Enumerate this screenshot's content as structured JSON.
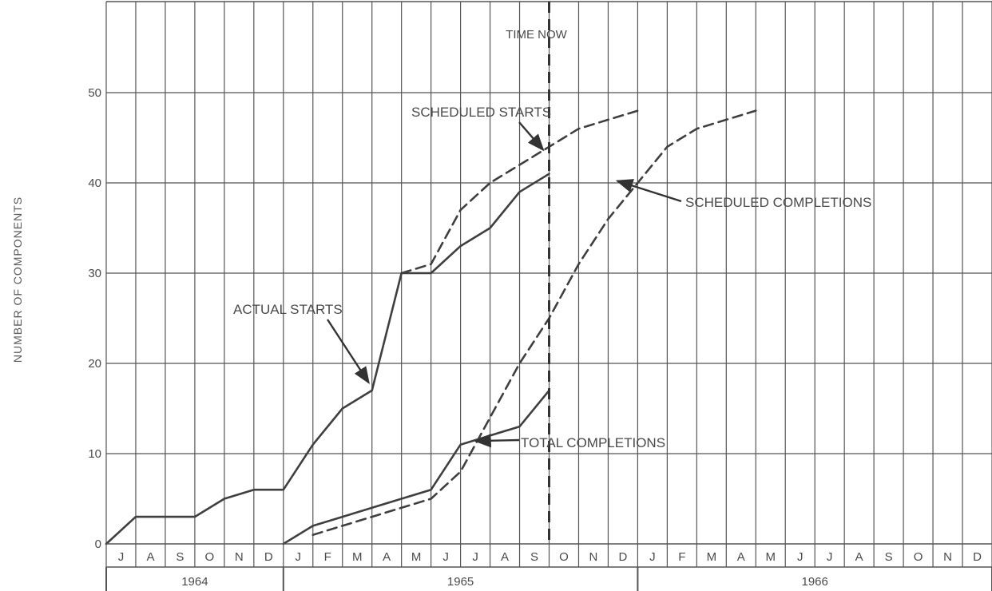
{
  "chart_data": {
    "type": "line",
    "title": "",
    "ylabel": "NUMBER OF COMPONENTS",
    "xlabel": "",
    "ylim": [
      0,
      55
    ],
    "yticks": [
      0,
      10,
      20,
      30,
      40,
      50
    ],
    "grid": true,
    "x_unit": "month (1964-06 = 0, 1966-12 = 30)",
    "month_labels": [
      "J",
      "A",
      "S",
      "O",
      "N",
      "D",
      "J",
      "F",
      "M",
      "A",
      "M",
      "J",
      "J",
      "A",
      "S",
      "O",
      "N",
      "D",
      "J",
      "F",
      "M",
      "A",
      "M",
      "J",
      "J",
      "A",
      "S",
      "O",
      "N",
      "D"
    ],
    "year_labels": [
      {
        "label": "1964",
        "start": 0,
        "end": 6
      },
      {
        "label": "1965",
        "start": 6,
        "end": 18
      },
      {
        "label": "1966",
        "start": 18,
        "end": 30
      }
    ],
    "time_now": {
      "label": "TIME NOW",
      "x": 15
    },
    "series": [
      {
        "name": "ACTUAL STARTS",
        "style": "solid",
        "x": [
          0,
          1,
          2,
          3,
          4,
          5,
          6,
          7,
          8,
          9,
          10,
          11,
          12,
          13,
          14,
          15
        ],
        "y": [
          0,
          3,
          3,
          3,
          5,
          6,
          6,
          11,
          15,
          17,
          30,
          30,
          33,
          35,
          39,
          41
        ]
      },
      {
        "name": "SCHEDULED STARTS",
        "style": "dashed",
        "x": [
          10,
          11,
          12,
          13,
          14,
          15,
          16,
          17,
          18
        ],
        "y": [
          30,
          31,
          37,
          40,
          42,
          44,
          46,
          47,
          48
        ]
      },
      {
        "name": "TOTAL COMPLETIONS",
        "style": "solid",
        "x": [
          6,
          7,
          8,
          9,
          10,
          11,
          12,
          13,
          14,
          15
        ],
        "y": [
          0,
          2,
          3,
          4,
          5,
          6,
          11,
          12,
          13,
          17
        ]
      },
      {
        "name": "SCHEDULED COMPLETIONS",
        "style": "dashed",
        "x": [
          7,
          8,
          9,
          10,
          11,
          12,
          13,
          14,
          15,
          16,
          17,
          18,
          19,
          20,
          21,
          22
        ],
        "y": [
          1,
          2,
          3,
          4,
          5,
          8,
          14,
          20,
          25,
          31,
          36,
          40,
          44,
          46,
          47,
          48
        ]
      }
    ]
  }
}
